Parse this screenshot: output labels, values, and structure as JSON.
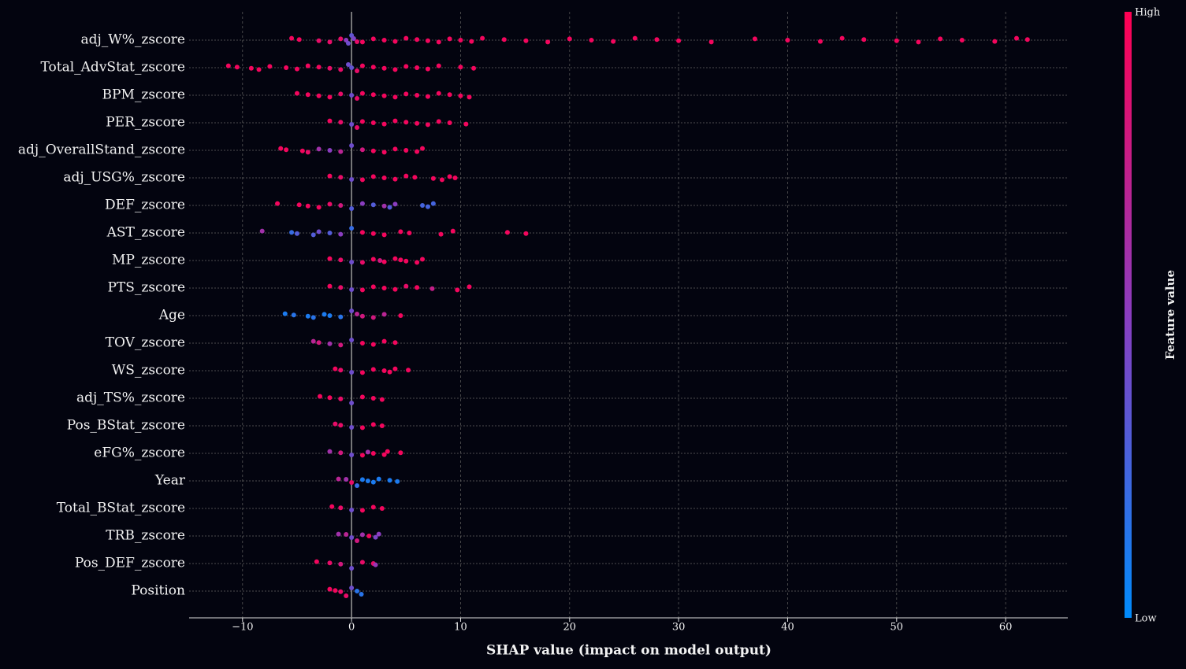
{
  "chart_data": {
    "type": "beeswarm",
    "xlabel": "SHAP value (impact on model output)",
    "colorbar_label": "Feature value",
    "colorbar_high": "High",
    "colorbar_low": "Low",
    "colormap": [
      "#008bfb",
      "#8a3dc0",
      "#ff0052"
    ],
    "xlim": [
      -14.9,
      65.7
    ],
    "xticks": [
      {
        "value": -10,
        "label": "−10"
      },
      0,
      10,
      20,
      30,
      40,
      50,
      60
    ],
    "grid": true,
    "categories": [
      "adj_W%_zscore",
      "Total_AdvStat_zscore",
      "BPM_zscore",
      "PER_zscore",
      "adj_OverallStand_zscore",
      "adj_USG%_zscore",
      "DEF_zscore",
      "AST_zscore",
      "MP_zscore",
      "PTS_zscore",
      "Age",
      "TOV_zscore",
      "WS_zscore",
      "adj_TS%_zscore",
      "Pos_BStat_zscore",
      "eFG%_zscore",
      "Year",
      "Total_BStat_zscore",
      "TRB_zscore",
      "Pos_DEF_zscore",
      "Position"
    ],
    "shap": [
      [
        -5.5,
        -4.8,
        -3,
        -2,
        -1,
        -0.5,
        -0.3,
        0,
        0.2,
        0.5,
        1,
        2,
        3,
        4,
        5,
        6,
        7,
        8,
        9,
        10,
        11,
        12,
        14,
        16,
        18,
        20,
        22,
        24,
        26,
        28,
        30,
        33,
        37,
        40,
        43,
        45,
        47,
        50,
        52,
        54,
        56,
        59,
        61,
        62
      ],
      [
        -11.3,
        -10.5,
        -9.2,
        -8.5,
        -7.5,
        -6,
        -5,
        -4,
        -3,
        -2,
        -1,
        -0.3,
        0,
        0.5,
        1,
        2,
        3,
        4,
        5,
        6,
        7,
        8,
        10,
        11.2
      ],
      [
        -5,
        -4,
        -3,
        -2,
        -1,
        0,
        0.5,
        1,
        2,
        3,
        4,
        5,
        6,
        7,
        8,
        9,
        10,
        10.8
      ],
      [
        -2,
        -1,
        0,
        0.5,
        1,
        2,
        3,
        4,
        5,
        6,
        7,
        8,
        9,
        10.5
      ],
      [
        -6.5,
        -6,
        -4.5,
        -4,
        -3,
        -2,
        -1,
        0,
        1,
        2,
        3,
        4,
        5,
        6,
        6.5
      ],
      [
        -2,
        -1,
        0,
        1,
        2,
        3,
        4,
        5,
        5.8,
        7.5,
        8.3,
        9,
        9.5
      ],
      [
        -6.8,
        -4.8,
        -4,
        -3,
        -2,
        -1,
        0,
        1,
        2,
        3,
        3.5,
        4,
        6.5,
        7,
        7.5
      ],
      [
        -8.2,
        -5.5,
        -5,
        -3.5,
        -3,
        -2,
        -1,
        0,
        1,
        2,
        3,
        4.5,
        5.3,
        8.2,
        9.3,
        14.3,
        16
      ],
      [
        -2,
        -1,
        0,
        1,
        2,
        2.6,
        3,
        4,
        4.5,
        5,
        6,
        6.5
      ],
      [
        -2,
        -1,
        0,
        1,
        2,
        3,
        4,
        5,
        6,
        7.4,
        9.7,
        10.8
      ],
      [
        -6.1,
        -5.3,
        -4,
        -3.5,
        -2.5,
        -2,
        -1,
        0,
        0.5,
        1,
        2,
        3,
        4.5
      ],
      [
        -3.5,
        -3,
        -2,
        -1,
        0,
        1,
        2,
        3,
        4
      ],
      [
        -1.5,
        -1,
        0,
        1,
        2,
        3,
        3.5,
        4,
        5.2
      ],
      [
        -2.9,
        -2,
        -1,
        0,
        1,
        2,
        2.8
      ],
      [
        -1.5,
        -1,
        0,
        1,
        2,
        2.8
      ],
      [
        -2,
        -1,
        0,
        1,
        1.5,
        2,
        3,
        3.3,
        4.5
      ],
      [
        -1.2,
        -0.5,
        0,
        0.5,
        1,
        1.5,
        2,
        2.5,
        3.5,
        4.2
      ],
      [
        -1.8,
        -1,
        0,
        1,
        2,
        2.8
      ],
      [
        -1.2,
        -0.5,
        0,
        0.5,
        1,
        1.6,
        2.2,
        2.5
      ],
      [
        -3.2,
        -2,
        -1,
        0,
        1,
        2,
        2.2
      ],
      [
        -2,
        -1.5,
        -1,
        -0.5,
        0,
        0.5,
        0.9
      ]
    ],
    "feature_value": [
      [
        0.95,
        0.95,
        0.9,
        0.9,
        0.9,
        0.5,
        0.4,
        0.35,
        0.45,
        0.9,
        0.95,
        0.95,
        0.95,
        0.95,
        0.95,
        0.95,
        0.95,
        0.95,
        0.95,
        0.95,
        0.95,
        0.95,
        0.95,
        0.95,
        0.95,
        0.95,
        0.95,
        0.95,
        0.95,
        0.95,
        0.95,
        0.95,
        0.95,
        0.95,
        0.95,
        0.95,
        0.95,
        0.95,
        0.95,
        0.95,
        0.95,
        0.95,
        0.95,
        0.95
      ],
      [
        0.95,
        0.95,
        0.95,
        0.95,
        0.95,
        0.95,
        0.95,
        0.95,
        0.95,
        0.9,
        0.9,
        0.4,
        0.35,
        0.9,
        0.95,
        0.95,
        0.95,
        0.95,
        0.95,
        0.95,
        0.95,
        0.95,
        0.95,
        0.95
      ],
      [
        0.95,
        0.95,
        0.95,
        0.95,
        0.9,
        0.4,
        0.9,
        0.95,
        0.95,
        0.95,
        0.95,
        0.95,
        0.95,
        0.95,
        0.95,
        0.95,
        0.95,
        0.95
      ],
      [
        0.95,
        0.9,
        0.4,
        0.9,
        0.95,
        0.95,
        0.95,
        0.95,
        0.95,
        0.95,
        0.95,
        0.95,
        0.95,
        0.95
      ],
      [
        0.95,
        0.95,
        0.95,
        0.9,
        0.6,
        0.5,
        0.7,
        0.4,
        0.8,
        0.95,
        0.95,
        0.95,
        0.95,
        0.95,
        0.95
      ],
      [
        0.95,
        0.9,
        0.4,
        0.95,
        0.95,
        0.95,
        0.95,
        0.95,
        0.95,
        0.95,
        0.95,
        0.95,
        0.95
      ],
      [
        0.95,
        0.95,
        0.95,
        0.95,
        0.9,
        0.8,
        0.3,
        0.5,
        0.3,
        0.6,
        0.3,
        0.5,
        0.25,
        0.25,
        0.25
      ],
      [
        0.6,
        0.2,
        0.3,
        0.3,
        0.4,
        0.3,
        0.5,
        0.2,
        0.95,
        0.95,
        0.95,
        0.95,
        0.95,
        0.95,
        0.95,
        0.95,
        0.95
      ],
      [
        0.95,
        0.9,
        0.4,
        0.9,
        0.95,
        0.8,
        0.95,
        0.95,
        0.95,
        0.95,
        0.95,
        0.95
      ],
      [
        0.95,
        0.9,
        0.4,
        0.95,
        0.95,
        0.95,
        0.95,
        0.9,
        0.95,
        0.75,
        0.95,
        0.95
      ],
      [
        0.1,
        0.15,
        0.1,
        0.15,
        0.1,
        0.1,
        0.15,
        0.4,
        0.7,
        0.8,
        0.8,
        0.7,
        0.95
      ],
      [
        0.7,
        0.8,
        0.6,
        0.8,
        0.4,
        0.95,
        0.95,
        0.95,
        0.95
      ],
      [
        0.95,
        0.9,
        0.4,
        0.95,
        0.95,
        0.95,
        0.95,
        0.95,
        0.95
      ],
      [
        0.95,
        0.95,
        0.9,
        0.4,
        0.95,
        0.95,
        0.95
      ],
      [
        0.9,
        0.9,
        0.4,
        0.95,
        0.95,
        0.95
      ],
      [
        0.6,
        0.8,
        0.4,
        0.95,
        0.6,
        0.95,
        0.95,
        0.95,
        0.95
      ],
      [
        0.7,
        0.6,
        0.9,
        0.2,
        0.1,
        0.1,
        0.1,
        0.1,
        0.1,
        0.1
      ],
      [
        0.95,
        0.9,
        0.4,
        0.95,
        0.95,
        0.95
      ],
      [
        0.6,
        0.7,
        0.4,
        0.8,
        0.6,
        0.95,
        0.45,
        0.5
      ],
      [
        0.95,
        0.9,
        0.8,
        0.4,
        0.9,
        0.9,
        0.55
      ],
      [
        0.95,
        0.95,
        0.9,
        0.9,
        0.4,
        0.15,
        0.15
      ]
    ]
  }
}
